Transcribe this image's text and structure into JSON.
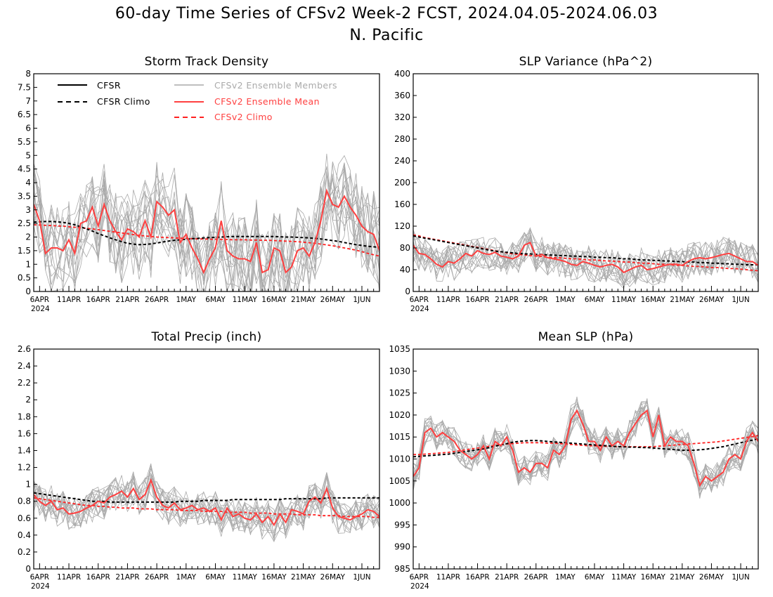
{
  "figure": {
    "title_line1": "60-day Time Series of CFSv2 Week-2 FCST, 2024.04.05-2024.06.03",
    "title_line2": "N. Pacific"
  },
  "legend": {
    "cfsr": "CFSR",
    "cfsr_climo": "CFSR Climo",
    "members": "CFSv2 Ensemble Members",
    "ens_mean": "CFSv2 Ensemble Mean",
    "cfsv2_climo": "CFSv2 Climo"
  },
  "colors": {
    "cfsr": "#000000",
    "members": "#aaaaaa",
    "ens_mean": "#ff4040",
    "cfsv2_climo": "#ff2020"
  },
  "x_tick_labels": [
    "6APR",
    "11APR",
    "16APR",
    "21APR",
    "26APR",
    "1MAY",
    "6MAY",
    "11MAY",
    "16MAY",
    "21MAY",
    "26MAY",
    "1JUN"
  ],
  "x_year_label": "2024",
  "chart_data": [
    {
      "type": "line",
      "title": "Storm Track Density",
      "ylim": [
        0,
        8
      ],
      "yticks": [
        "0",
        "0.5",
        "1",
        "1.5",
        "2",
        "2.5",
        "3",
        "3.5",
        "4",
        "4.5",
        "5",
        "5.5",
        "6",
        "6.5",
        "7",
        "7.5",
        "8"
      ],
      "days": 60,
      "legend_position": "top-left",
      "grid": false,
      "series": [
        {
          "name": "CFSv2 Ensemble Mean",
          "values": [
            3.2,
            2.6,
            1.4,
            1.6,
            1.6,
            1.5,
            1.9,
            1.4,
            2.5,
            2.6,
            3.1,
            2.4,
            3.2,
            2.6,
            2.2,
            1.9,
            2.3,
            2.2,
            2.0,
            2.6,
            2.0,
            3.3,
            3.1,
            2.8,
            3.0,
            1.8,
            2.1,
            1.6,
            1.2,
            0.7,
            1.2,
            1.6,
            2.6,
            1.5,
            1.3,
            1.2,
            1.2,
            1.1,
            1.8,
            0.7,
            0.8,
            1.6,
            1.5,
            0.7,
            0.9,
            1.5,
            1.6,
            1.3,
            1.8,
            2.6,
            3.7,
            3.2,
            3.1,
            3.5,
            3.1,
            2.8,
            2.4,
            2.2,
            2.1,
            1.5
          ]
        },
        {
          "name": "CFSR Climo",
          "values": [
            2.55,
            2.56,
            2.57,
            2.57,
            2.56,
            2.54,
            2.5,
            2.45,
            2.38,
            2.3,
            2.22,
            2.13,
            2.05,
            1.97,
            1.9,
            1.83,
            1.77,
            1.74,
            1.72,
            1.73,
            1.75,
            1.78,
            1.82,
            1.85,
            1.88,
            1.9,
            1.92,
            1.94,
            1.95,
            1.97,
            1.98,
            1.99,
            2.0,
            2.01,
            2.02,
            2.02,
            2.02,
            2.02,
            2.02,
            2.02,
            2.02,
            2.02,
            2.01,
            2.0,
            2.0,
            1.99,
            1.98,
            1.97,
            1.95,
            1.93,
            1.9,
            1.87,
            1.84,
            1.8,
            1.76,
            1.72,
            1.69,
            1.66,
            1.64,
            1.62
          ]
        },
        {
          "name": "CFSv2 Climo",
          "values": [
            2.45,
            2.44,
            2.43,
            2.42,
            2.41,
            2.4,
            2.38,
            2.36,
            2.34,
            2.32,
            2.3,
            2.27,
            2.24,
            2.21,
            2.18,
            2.15,
            2.12,
            2.09,
            2.06,
            2.04,
            2.02,
            2.0,
            1.99,
            1.98,
            1.97,
            1.96,
            1.95,
            1.94,
            1.93,
            1.93,
            1.92,
            1.92,
            1.91,
            1.91,
            1.9,
            1.9,
            1.9,
            1.89,
            1.89,
            1.88,
            1.88,
            1.87,
            1.86,
            1.85,
            1.84,
            1.83,
            1.81,
            1.79,
            1.77,
            1.74,
            1.71,
            1.68,
            1.64,
            1.6,
            1.56,
            1.52,
            1.46,
            1.4,
            1.35,
            1.3
          ]
        }
      ],
      "member_count": 16,
      "member_spread": 1.6
    },
    {
      "type": "line",
      "title": "SLP Variance (hPa^2)",
      "ylim": [
        0,
        400
      ],
      "yticks": [
        "0",
        "40",
        "80",
        "120",
        "160",
        "200",
        "240",
        "280",
        "320",
        "360",
        "400"
      ],
      "days": 60,
      "grid": false,
      "series": [
        {
          "name": "CFSv2 Ensemble Mean",
          "values": [
            85,
            70,
            68,
            60,
            50,
            45,
            55,
            52,
            60,
            70,
            65,
            75,
            70,
            68,
            72,
            65,
            63,
            60,
            65,
            85,
            90,
            65,
            68,
            62,
            60,
            58,
            55,
            50,
            48,
            55,
            52,
            48,
            45,
            48,
            50,
            45,
            35,
            40,
            45,
            48,
            40,
            42,
            45,
            48,
            50,
            50,
            48,
            55,
            60,
            62,
            60,
            62,
            65,
            68,
            70,
            65,
            60,
            55,
            55,
            48
          ]
        },
        {
          "name": "CFSR Climo",
          "values": [
            102,
            100,
            98,
            96,
            94,
            92,
            90,
            88,
            86,
            84,
            82,
            80,
            78,
            76,
            74,
            73,
            72,
            71,
            70,
            69,
            69,
            68,
            68,
            67,
            67,
            66,
            66,
            65,
            65,
            64,
            64,
            63,
            63,
            62,
            62,
            61,
            60,
            60,
            59,
            58,
            58,
            57,
            57,
            56,
            56,
            55,
            55,
            54,
            54,
            53,
            53,
            52,
            52,
            51,
            51,
            50,
            50,
            49,
            49,
            49
          ]
        },
        {
          "name": "CFSv2 Climo",
          "values": [
            104,
            102,
            99,
            97,
            95,
            93,
            91,
            89,
            87,
            85,
            83,
            81,
            79,
            77,
            75,
            73,
            71,
            69,
            68,
            67,
            66,
            65,
            64,
            63,
            62,
            62,
            61,
            60,
            60,
            59,
            58,
            58,
            57,
            56,
            56,
            55,
            54,
            54,
            53,
            52,
            52,
            51,
            50,
            50,
            49,
            48,
            48,
            47,
            46,
            46,
            45,
            44,
            44,
            43,
            42,
            42,
            41,
            40,
            39,
            38
          ]
        }
      ],
      "member_count": 16,
      "member_spread": 32
    },
    {
      "type": "line",
      "title": "Total Precip (inch)",
      "ylim": [
        0,
        2.6
      ],
      "yticks": [
        "0",
        "0.2",
        "0.4",
        "0.6",
        "0.8",
        "1",
        "1.2",
        "1.4",
        "1.6",
        "1.8",
        "2",
        "2.2",
        "2.4",
        "2.6"
      ],
      "days": 60,
      "grid": false,
      "series": [
        {
          "name": "CFSv2 Ensemble Mean",
          "values": [
            0.88,
            0.8,
            0.75,
            0.8,
            0.7,
            0.72,
            0.65,
            0.66,
            0.68,
            0.72,
            0.75,
            0.8,
            0.78,
            0.85,
            0.88,
            0.92,
            0.85,
            0.95,
            0.82,
            0.88,
            1.05,
            0.85,
            0.75,
            0.72,
            0.78,
            0.7,
            0.72,
            0.75,
            0.7,
            0.72,
            0.68,
            0.72,
            0.58,
            0.72,
            0.62,
            0.65,
            0.6,
            0.58,
            0.65,
            0.55,
            0.62,
            0.52,
            0.65,
            0.55,
            0.7,
            0.68,
            0.65,
            0.8,
            0.85,
            0.78,
            0.95,
            0.72,
            0.62,
            0.6,
            0.58,
            0.62,
            0.65,
            0.7,
            0.68,
            0.62
          ]
        },
        {
          "name": "CFSR Climo",
          "values": [
            0.9,
            0.89,
            0.88,
            0.87,
            0.86,
            0.85,
            0.84,
            0.83,
            0.82,
            0.81,
            0.8,
            0.8,
            0.8,
            0.79,
            0.79,
            0.79,
            0.79,
            0.79,
            0.79,
            0.79,
            0.79,
            0.79,
            0.79,
            0.79,
            0.79,
            0.8,
            0.8,
            0.8,
            0.8,
            0.81,
            0.81,
            0.81,
            0.81,
            0.81,
            0.82,
            0.82,
            0.82,
            0.82,
            0.82,
            0.82,
            0.82,
            0.82,
            0.82,
            0.83,
            0.83,
            0.83,
            0.83,
            0.83,
            0.83,
            0.83,
            0.84,
            0.84,
            0.84,
            0.84,
            0.84,
            0.84,
            0.84,
            0.84,
            0.84,
            0.84
          ]
        },
        {
          "name": "CFSv2 Climo",
          "values": [
            0.84,
            0.83,
            0.82,
            0.81,
            0.8,
            0.79,
            0.78,
            0.77,
            0.76,
            0.75,
            0.75,
            0.74,
            0.74,
            0.73,
            0.73,
            0.72,
            0.72,
            0.72,
            0.71,
            0.71,
            0.71,
            0.7,
            0.7,
            0.7,
            0.7,
            0.69,
            0.69,
            0.69,
            0.69,
            0.68,
            0.68,
            0.68,
            0.68,
            0.67,
            0.67,
            0.67,
            0.67,
            0.66,
            0.66,
            0.66,
            0.66,
            0.65,
            0.65,
            0.65,
            0.65,
            0.64,
            0.64,
            0.64,
            0.64,
            0.63,
            0.63,
            0.63,
            0.63,
            0.62,
            0.62,
            0.62,
            0.62,
            0.62,
            0.61,
            0.61
          ]
        }
      ],
      "member_count": 16,
      "member_spread": 0.2
    },
    {
      "type": "line",
      "title": "Mean SLP (hPa)",
      "ylim": [
        985,
        1035
      ],
      "yticks": [
        "985",
        "990",
        "995",
        "1000",
        "1005",
        "1010",
        "1015",
        "1020",
        "1025",
        "1030",
        "1035"
      ],
      "days": 60,
      "grid": false,
      "series": [
        {
          "name": "CFSv2 Ensemble Mean",
          "values": [
            1006,
            1008,
            1016,
            1017,
            1015,
            1016,
            1015,
            1014,
            1012,
            1011,
            1010,
            1011,
            1013,
            1010,
            1014,
            1013,
            1015,
            1012,
            1007,
            1008,
            1007,
            1009,
            1009,
            1008,
            1012,
            1011,
            1013,
            1019,
            1021,
            1018,
            1014,
            1014,
            1012,
            1015,
            1013,
            1014,
            1013,
            1016,
            1018,
            1020,
            1021,
            1015,
            1020,
            1013,
            1015,
            1014,
            1014,
            1013,
            1009,
            1004,
            1006,
            1005,
            1006,
            1007,
            1010,
            1011,
            1010,
            1014,
            1016,
            1014
          ]
        },
        {
          "name": "CFSR Climo",
          "values": [
            1010.5,
            1010.6,
            1010.7,
            1010.8,
            1010.9,
            1011.0,
            1011.1,
            1011.3,
            1011.5,
            1011.7,
            1011.9,
            1012.1,
            1012.3,
            1012.6,
            1012.9,
            1013.2,
            1013.5,
            1013.8,
            1014.0,
            1014.1,
            1014.2,
            1014.2,
            1014.1,
            1014.0,
            1013.9,
            1013.8,
            1013.7,
            1013.6,
            1013.5,
            1013.4,
            1013.3,
            1013.2,
            1013.1,
            1013.0,
            1012.9,
            1012.8,
            1012.8,
            1012.7,
            1012.7,
            1012.6,
            1012.6,
            1012.5,
            1012.4,
            1012.3,
            1012.2,
            1012.1,
            1012.0,
            1012.0,
            1012.0,
            1012.1,
            1012.2,
            1012.4,
            1012.6,
            1012.8,
            1013.1,
            1013.4,
            1013.7,
            1014.0,
            1014.3,
            1014.6
          ]
        },
        {
          "name": "CFSv2 Climo",
          "values": [
            1011.0,
            1011.0,
            1011.1,
            1011.2,
            1011.3,
            1011.4,
            1011.5,
            1011.7,
            1011.9,
            1012.1,
            1012.3,
            1012.5,
            1012.7,
            1012.9,
            1013.1,
            1013.3,
            1013.4,
            1013.5,
            1013.6,
            1013.7,
            1013.7,
            1013.7,
            1013.7,
            1013.6,
            1013.6,
            1013.5,
            1013.4,
            1013.3,
            1013.2,
            1013.1,
            1013.0,
            1013.0,
            1012.9,
            1012.9,
            1012.9,
            1012.8,
            1012.8,
            1012.8,
            1012.8,
            1012.8,
            1012.8,
            1012.8,
            1012.9,
            1013.0,
            1013.1,
            1013.2,
            1013.3,
            1013.4,
            1013.5,
            1013.6,
            1013.7,
            1013.8,
            1013.9,
            1014.1,
            1014.3,
            1014.5,
            1014.7,
            1014.9,
            1015.1,
            1015.3
          ]
        }
      ],
      "member_count": 16,
      "member_spread": 3.2
    }
  ]
}
